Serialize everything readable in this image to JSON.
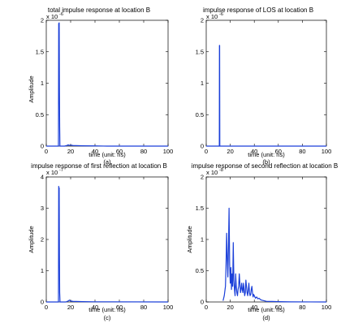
{
  "figure": {
    "line_color": "#1a3fd9"
  },
  "chart_data": [
    {
      "type": "line",
      "title": "total impulse response at location B",
      "xlabel": "time (unit: ns)",
      "ylabel": "Amplitude",
      "caption": "(a)",
      "multiplier_base": "x 10",
      "multiplier_exp": "-6",
      "xlim": [
        0,
        100
      ],
      "ylim": [
        0,
        2
      ],
      "xticks": [
        "0",
        "20",
        "40",
        "60",
        "80",
        "100"
      ],
      "yticks": [
        "0",
        "0.5",
        "1",
        "1.5",
        "2"
      ],
      "series": [
        {
          "x": [
            0,
            10.0,
            10.2,
            10.4,
            10.6,
            10.8,
            11.0,
            11.2,
            11.4,
            12,
            15,
            17,
            18,
            19,
            20,
            22,
            30,
            40,
            50,
            100
          ],
          "y": [
            0,
            0,
            1.95,
            1.2,
            1.96,
            0.9,
            0.3,
            0.0,
            0.0,
            0,
            0,
            0.01,
            0.02,
            0.01,
            0.015,
            0.01,
            0.005,
            0.003,
            0,
            0
          ]
        }
      ]
    },
    {
      "type": "line",
      "title": "impulse response of LOS at location B",
      "xlabel": "time (unit: ns)",
      "ylabel": "",
      "caption": "(b)",
      "multiplier_base": "x 10",
      "multiplier_exp": "-6",
      "xlim": [
        0,
        100
      ],
      "ylim": [
        0,
        2
      ],
      "xticks": [
        "0",
        "20",
        "40",
        "60",
        "80",
        "100"
      ],
      "yticks": [
        "0",
        "0.5",
        "1",
        "1.5",
        "2"
      ],
      "series": [
        {
          "x": [
            0,
            10.9,
            11.0,
            11.15,
            11.3,
            11.4,
            100
          ],
          "y": [
            0,
            0,
            1.6,
            1.6,
            0,
            0,
            0
          ]
        }
      ]
    },
    {
      "type": "line",
      "title": "impulse response of first reflection at location B",
      "xlabel": "time (unit: ns)",
      "ylabel": "Amplitude",
      "caption": "(c)",
      "multiplier_base": "x 10",
      "multiplier_exp": "-7",
      "xlim": [
        0,
        100
      ],
      "ylim": [
        0,
        4
      ],
      "xticks": [
        "0",
        "20",
        "40",
        "60",
        "80",
        "100"
      ],
      "yticks": [
        "0",
        "1",
        "2",
        "3",
        "4"
      ],
      "series": [
        {
          "x": [
            0,
            10.0,
            10.2,
            10.4,
            10.6,
            10.8,
            11.0,
            11.3,
            12,
            16,
            18,
            19,
            20,
            22,
            30,
            40,
            100
          ],
          "y": [
            0,
            0,
            3.7,
            2.9,
            3.65,
            1.5,
            0.3,
            0.0,
            0,
            0,
            0.03,
            0.06,
            0.03,
            0.02,
            0.01,
            0.005,
            0
          ]
        }
      ]
    },
    {
      "type": "line",
      "title": "impulse response of second reflection at location B",
      "xlabel": "time (unit: ns)",
      "ylabel": "Amplitude",
      "caption": "(d)",
      "multiplier_base": "x 10",
      "multiplier_exp": "-8",
      "xlim": [
        0,
        100
      ],
      "ylim": [
        0,
        2
      ],
      "xticks": [
        "0",
        "20",
        "40",
        "60",
        "80",
        "100"
      ],
      "yticks": [
        "0",
        "0.5",
        "1",
        "1.5",
        "2"
      ],
      "series": [
        {
          "x": [
            14,
            15,
            16,
            16.5,
            17,
            17.5,
            18,
            18.5,
            19,
            19.5,
            20,
            20.5,
            21,
            21.5,
            22,
            22.5,
            23,
            23.5,
            24,
            24.5,
            25,
            25.5,
            26,
            26.5,
            27,
            27.5,
            28,
            28.5,
            29,
            29.5,
            30,
            30.5,
            31,
            31.5,
            32,
            32.5,
            33,
            33.5,
            34,
            34.5,
            35,
            35.5,
            36,
            36.5,
            37,
            37.5,
            38,
            38.5,
            39,
            39.5,
            40,
            41,
            42,
            43,
            44,
            45,
            46,
            48,
            50,
            55,
            60,
            70,
            100
          ],
          "y": [
            0.02,
            0.1,
            0.25,
            0.6,
            1.1,
            0.7,
            0.4,
            0.85,
            1.5,
            0.6,
            0.3,
            0.55,
            0.2,
            0.45,
            0.25,
            0.95,
            0.35,
            0.2,
            0.1,
            0.45,
            0.25,
            0.15,
            0.1,
            0.2,
            0.25,
            0.45,
            0.3,
            0.15,
            0.2,
            0.3,
            0.2,
            0.15,
            0.3,
            0.2,
            0.1,
            0.15,
            0.35,
            0.25,
            0.15,
            0.1,
            0.2,
            0.3,
            0.15,
            0.1,
            0.12,
            0.2,
            0.25,
            0.15,
            0.08,
            0.12,
            0.1,
            0.06,
            0.08,
            0.05,
            0.06,
            0.04,
            0.03,
            0.02,
            0.01,
            0.008,
            0.005,
            0.002,
            0
          ]
        }
      ]
    }
  ]
}
